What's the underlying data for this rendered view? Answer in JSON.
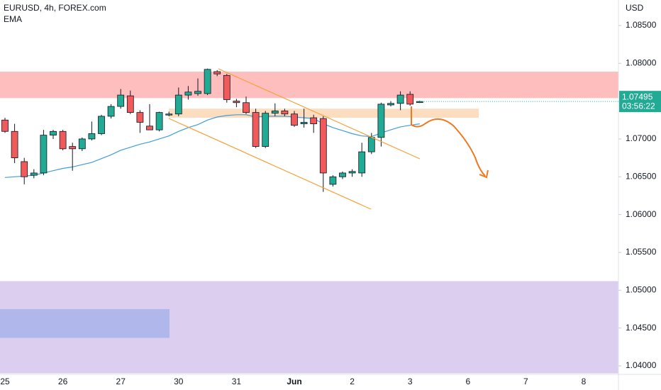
{
  "chart_data": {
    "type": "candlestick",
    "title": "EURUSD, 4h, FOREX.com",
    "indicator": "EMA",
    "currency": "USD",
    "price_label": "1.07495",
    "countdown": "03:56:22",
    "up_color": "#22ab94",
    "down_color": "#f05a5a",
    "ema_color": "#3f9fd8",
    "categories": [
      "25",
      null,
      null,
      null,
      null,
      null,
      "26",
      null,
      null,
      null,
      null,
      null,
      "27",
      null,
      null,
      null,
      null,
      null,
      "30",
      null,
      null,
      null,
      null,
      null,
      "31",
      null,
      null,
      null,
      null,
      null,
      "Jun",
      null,
      null,
      null,
      null,
      null,
      "2",
      null,
      null,
      null,
      null,
      null,
      "3",
      null,
      null,
      null,
      null,
      null,
      "6",
      null,
      null,
      null,
      null,
      null,
      "7",
      null,
      null,
      null,
      null,
      null,
      "8"
    ],
    "open": [
      1.0725,
      1.071,
      1.067,
      1.0652,
      1.0655,
      1.0705,
      1.071,
      1.069,
      1.0687,
      1.07,
      1.0707,
      1.073,
      1.0743,
      1.0757,
      1.0735,
      1.0717,
      1.0712,
      1.0732,
      1.0733,
      1.0758,
      1.076,
      1.076,
      1.0789,
      1.0784,
      1.075,
      1.0748,
      1.0735,
      1.069,
      1.0734,
      1.0737,
      1.0733,
      1.072,
      1.0728,
      1.0727,
      1.064,
      1.065,
      1.0655,
      1.0655,
      1.0683,
      1.0702,
      1.0745,
      1.0747,
      1.0759,
      1.07485,
      null,
      null,
      null,
      null,
      null,
      null,
      null,
      null,
      null,
      null,
      null,
      null,
      null,
      null,
      null,
      null,
      null
    ],
    "high": [
      1.0728,
      1.072,
      1.0675,
      1.066,
      1.0712,
      1.0712,
      1.0712,
      1.0695,
      1.0702,
      1.0723,
      1.0732,
      1.0746,
      1.0766,
      1.0764,
      1.0738,
      1.0746,
      1.0736,
      1.0736,
      1.0768,
      1.077,
      1.078,
      1.0793,
      1.0791,
      1.0786,
      1.0753,
      1.0756,
      1.074,
      1.0737,
      1.0747,
      1.074,
      1.0737,
      1.074,
      1.0732,
      1.073,
      1.0652,
      1.0657,
      1.066,
      1.0695,
      1.0708,
      1.0748,
      1.075,
      1.0763,
      1.0763,
      1.07505,
      null,
      null,
      null,
      null,
      null,
      null,
      null,
      null,
      null,
      null,
      null,
      null,
      null,
      null,
      null,
      null,
      null
    ],
    "low": [
      1.0708,
      1.0668,
      1.064,
      1.0648,
      1.0652,
      1.07,
      1.0685,
      1.0658,
      1.0684,
      1.0698,
      1.0705,
      1.0727,
      1.074,
      1.0733,
      1.0708,
      1.0712,
      1.071,
      1.073,
      1.073,
      1.0752,
      1.0757,
      1.0758,
      1.0783,
      1.0748,
      1.0742,
      1.0733,
      1.0688,
      1.0688,
      1.073,
      1.073,
      1.0716,
      1.0715,
      1.0708,
      1.063,
      1.0637,
      1.0647,
      1.065,
      1.065,
      1.068,
      1.069,
      1.0743,
      1.0738,
      1.0744,
      1.07475,
      null,
      null,
      null,
      null,
      null,
      null,
      null,
      null,
      null,
      null,
      null,
      null,
      null,
      null,
      null,
      null,
      null
    ],
    "close": [
      1.071,
      1.0675,
      1.065,
      1.0655,
      1.0705,
      1.071,
      1.0687,
      1.0687,
      1.07,
      1.0707,
      1.073,
      1.0743,
      1.0758,
      1.0735,
      1.0722,
      1.0712,
      1.0735,
      1.0733,
      1.0758,
      1.0762,
      1.0763,
      1.0792,
      1.0786,
      1.0752,
      1.0748,
      1.0735,
      1.069,
      1.0734,
      1.0737,
      1.0733,
      1.0718,
      1.0722,
      1.072,
      1.0655,
      1.065,
      1.0655,
      1.0657,
      1.0683,
      1.0702,
      1.0746,
      1.0747,
      1.0758,
      1.0746,
      1.07495,
      null,
      null,
      null,
      null,
      null,
      null,
      null,
      null,
      null,
      null,
      null,
      null,
      null,
      null,
      null,
      null,
      null
    ],
    "ema": [
      1.0649,
      1.065,
      1.0651,
      1.0652,
      1.0655,
      1.0658,
      1.0661,
      1.0663,
      1.0666,
      1.0669,
      1.0674,
      1.0679,
      1.0685,
      1.0689,
      1.0693,
      1.0696,
      1.07,
      1.0704,
      1.071,
      1.0715,
      1.0719,
      1.0725,
      1.0729,
      1.0731,
      1.0732,
      1.0732,
      1.0729,
      1.073,
      1.073,
      1.073,
      1.0729,
      1.0728,
      1.0727,
      1.072,
      1.0715,
      1.0711,
      1.0707,
      1.0704,
      1.0703,
      1.0708,
      1.0712,
      1.0716,
      1.0718,
      1.072,
      null,
      null,
      null,
      null,
      null,
      null,
      null,
      null,
      null,
      null,
      null,
      null,
      null,
      null,
      null,
      null,
      null
    ],
    "zones": [
      {
        "low": 1.0754,
        "high": 1.0789,
        "color": "#ffb7b7"
      },
      {
        "low": 1.0728,
        "high": 1.074,
        "color": "#fcd9b8"
      },
      {
        "low": 1.039,
        "high": 1.0512,
        "color": "#d8c9ec"
      },
      {
        "low": 1.0437,
        "high": 1.0475,
        "color": "#abb6ea"
      }
    ],
    "ylim": [
      1.03887,
      1.08837
    ],
    "yticks": [
      {
        "value": 1.04,
        "label": "1.04000"
      },
      {
        "value": 1.045,
        "label": "1.04500"
      },
      {
        "value": 1.05,
        "label": "1.05000"
      },
      {
        "value": 1.055,
        "label": "1.05500"
      },
      {
        "value": 1.06,
        "label": "1.06000"
      },
      {
        "value": 1.065,
        "label": "1.06500"
      },
      {
        "value": 1.07,
        "label": "1.07000"
      },
      {
        "value": 1.08,
        "label": "1.08000"
      },
      {
        "value": 1.085,
        "label": "1.08500"
      }
    ]
  }
}
